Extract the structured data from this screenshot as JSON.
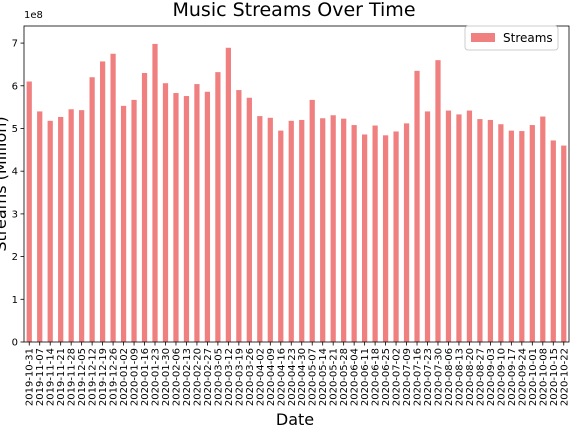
{
  "chart_data": {
    "type": "bar",
    "title": "Music Streams Over Time",
    "xlabel": "Date",
    "ylabel": "Streams (Million)",
    "y_scale_label": "1e8",
    "ylim": [
      0,
      7.4
    ],
    "yticks": [
      0,
      1,
      2,
      3,
      4,
      5,
      6,
      7
    ],
    "legend_position": "top-right",
    "bar_color": "#f08080",
    "series": [
      {
        "name": "Streams",
        "values": [
          6.1,
          5.4,
          5.18,
          5.27,
          5.45,
          5.43,
          6.2,
          6.57,
          6.75,
          5.53,
          5.67,
          6.3,
          6.98,
          6.06,
          5.83,
          5.76,
          6.04,
          5.86,
          6.32,
          6.89,
          5.9,
          5.72,
          5.29,
          5.25,
          4.95,
          5.18,
          5.2,
          5.67,
          5.24,
          5.31,
          5.23,
          5.08,
          4.86,
          5.07,
          4.84,
          4.93,
          5.12,
          6.35,
          5.4,
          6.6,
          5.42,
          5.33,
          5.42,
          5.22,
          5.2,
          5.1,
          4.95,
          4.94,
          5.08,
          5.28,
          4.72,
          4.6
        ]
      }
    ],
    "categories": [
      "2019-10-31",
      "2019-11-07",
      "2019-11-14",
      "2019-11-21",
      "2019-11-28",
      "2019-12-05",
      "2019-12-12",
      "2019-12-19",
      "2019-12-26",
      "2020-01-02",
      "2020-01-09",
      "2020-01-16",
      "2020-01-23",
      "2020-01-30",
      "2020-02-06",
      "2020-02-13",
      "2020-02-20",
      "2020-02-27",
      "2020-03-05",
      "2020-03-12",
      "2020-03-19",
      "2020-03-26",
      "2020-04-02",
      "2020-04-09",
      "2020-04-16",
      "2020-04-23",
      "2020-04-30",
      "2020-05-07",
      "2020-05-14",
      "2020-05-21",
      "2020-05-28",
      "2020-06-04",
      "2020-06-11",
      "2020-06-18",
      "2020-06-25",
      "2020-07-02",
      "2020-07-09",
      "2020-07-16",
      "2020-07-23",
      "2020-07-30",
      "2020-08-06",
      "2020-08-13",
      "2020-08-20",
      "2020-08-27",
      "2020-09-03",
      "2020-09-10",
      "2020-09-17",
      "2020-09-24",
      "2020-10-01",
      "2020-10-08",
      "2020-10-15",
      "2020-10-22"
    ]
  }
}
